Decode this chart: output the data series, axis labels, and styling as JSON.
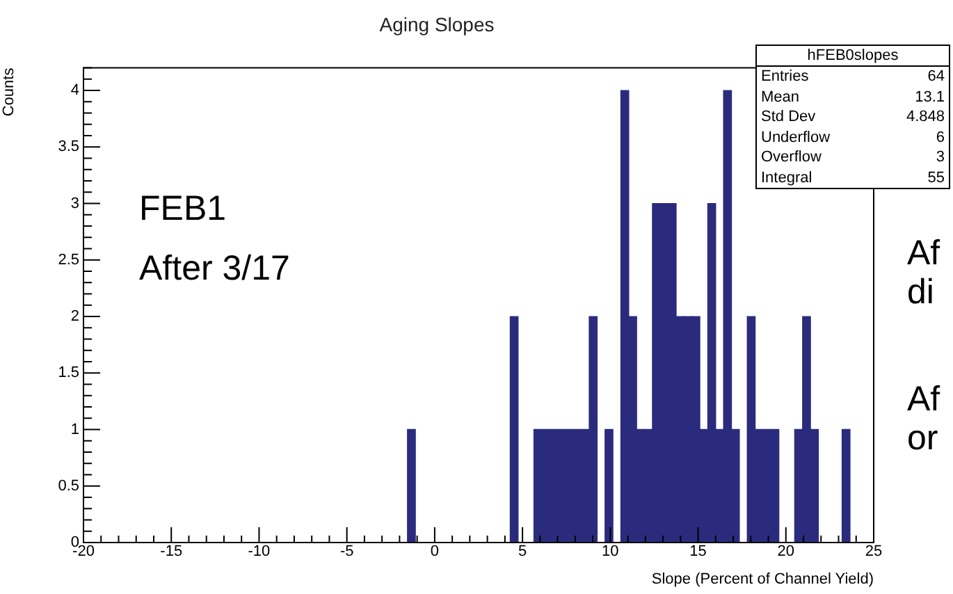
{
  "chart_data": {
    "type": "histogram",
    "title": "Aging Slopes",
    "xlabel": "Slope (Percent of Channel Yield)",
    "ylabel": "Counts",
    "color": "#2b2b7d",
    "bins": [
      -20,
      -19.55,
      -19.1,
      -18.65,
      -18.2,
      -17.75,
      -17.3,
      -16.85,
      -16.4,
      -15.95,
      -15.5,
      -15.05,
      -14.6,
      -14.15,
      -13.7,
      -13.25,
      -12.8,
      -12.35,
      -11.9,
      -11.45,
      -11,
      -10.55,
      -10.1,
      -9.65,
      -9.2,
      -8.75,
      -8.3,
      -7.85,
      -7.4,
      -6.95,
      -6.5,
      -6.05,
      -5.6,
      -5.15,
      -4.7,
      -4.25,
      -3.8,
      -3.35,
      -2.9,
      -2.45,
      -2,
      -1.55,
      -1.1,
      -0.65,
      -0.2,
      0.25,
      0.7,
      1.15,
      1.6,
      2.05,
      2.5,
      2.95,
      3.4,
      3.85,
      4.3,
      4.75,
      5.2,
      5.65,
      6.1,
      6.55,
      7,
      7.45,
      7.9,
      8.35,
      8.8,
      9.25,
      9.7,
      10.15,
      10.6,
      11.05,
      11.5,
      11.95,
      12.4,
      12.85,
      13.3,
      13.75,
      14.2,
      14.65,
      15.1,
      15.55,
      16,
      16.45,
      16.9,
      17.35,
      17.8,
      18.25,
      18.7,
      19.15,
      19.6,
      20.05,
      20.5,
      20.95,
      21.4,
      21.85,
      22.3,
      22.75,
      23.2,
      23.65,
      24.1,
      24.55,
      25
    ],
    "values": [
      0,
      0,
      0,
      0,
      0,
      0,
      0,
      0,
      0,
      0,
      0,
      0,
      0,
      0,
      0,
      0,
      0,
      0,
      0,
      0,
      0,
      0,
      0,
      0,
      0,
      0,
      0,
      0,
      0,
      0,
      0,
      0,
      0,
      0,
      0,
      0,
      0,
      0,
      0,
      0,
      0,
      1,
      0,
      0,
      0,
      0,
      0,
      0,
      0,
      0,
      0,
      0,
      0,
      0,
      2,
      0,
      0,
      1,
      1,
      1,
      1,
      1,
      1,
      1,
      2,
      0,
      1,
      0,
      4,
      2,
      1,
      1,
      3,
      3,
      3,
      2,
      2,
      2,
      1,
      3,
      1,
      4,
      1,
      0,
      2,
      1,
      1,
      1,
      0,
      0,
      1,
      2,
      1,
      0,
      0,
      0,
      1,
      0,
      0,
      0
    ],
    "xlim": [
      -20,
      25
    ],
    "xticks": [
      -20,
      {
        "value": -19,
        "label": null
      },
      {
        "value": -18,
        "label": null
      },
      {
        "value": -17,
        "label": null
      },
      {
        "value": -16,
        "label": null
      },
      -15,
      {
        "value": -14,
        "label": null
      },
      {
        "value": -13,
        "label": null
      },
      {
        "value": -12,
        "label": null
      },
      {
        "value": -11,
        "label": null
      },
      -10,
      {
        "value": -9,
        "label": null
      },
      {
        "value": -8,
        "label": null
      },
      {
        "value": -7,
        "label": null
      },
      {
        "value": -6,
        "label": null
      },
      -5,
      {
        "value": -4,
        "label": null
      },
      {
        "value": -3,
        "label": null
      },
      {
        "value": -2,
        "label": null
      },
      {
        "value": -1,
        "label": null
      },
      0,
      {
        "value": 1,
        "label": null
      },
      {
        "value": 2,
        "label": null
      },
      {
        "value": 3,
        "label": null
      },
      {
        "value": 4,
        "label": null
      },
      5,
      {
        "value": 6,
        "label": null
      },
      {
        "value": 7,
        "label": null
      },
      {
        "value": 8,
        "label": null
      },
      {
        "value": 9,
        "label": null
      },
      10,
      {
        "value": 11,
        "label": null
      },
      {
        "value": 12,
        "label": null
      },
      {
        "value": 13,
        "label": null
      },
      {
        "value": 14,
        "label": null
      },
      15,
      {
        "value": 16,
        "label": null
      },
      {
        "value": 17,
        "label": null
      },
      {
        "value": 18,
        "label": null
      },
      {
        "value": 19,
        "label": null
      },
      20,
      {
        "value": 21,
        "label": null
      },
      {
        "value": 22,
        "label": null
      },
      {
        "value": 23,
        "label": null
      },
      {
        "value": 24,
        "label": null
      },
      25
    ],
    "ylim": [
      0,
      4.2
    ],
    "yticks": [
      0,
      {
        "value": 0.1,
        "label": null
      },
      {
        "value": 0.2,
        "label": null
      },
      {
        "value": 0.3,
        "label": null
      },
      {
        "value": 0.4,
        "label": null
      },
      0.5,
      {
        "value": 0.6,
        "label": null
      },
      {
        "value": 0.7,
        "label": null
      },
      {
        "value": 0.8,
        "label": null
      },
      {
        "value": 0.9,
        "label": null
      },
      1,
      {
        "value": 1.1,
        "label": null
      },
      {
        "value": 1.2,
        "label": null
      },
      {
        "value": 1.3,
        "label": null
      },
      {
        "value": 1.4,
        "label": null
      },
      1.5,
      {
        "value": 1.6,
        "label": null
      },
      {
        "value": 1.7,
        "label": null
      },
      {
        "value": 1.8,
        "label": null
      },
      {
        "value": 1.9,
        "label": null
      },
      2,
      {
        "value": 2.1,
        "label": null
      },
      {
        "value": 2.2,
        "label": null
      },
      {
        "value": 2.3,
        "label": null
      },
      {
        "value": 2.4,
        "label": null
      },
      2.5,
      {
        "value": 2.6,
        "label": null
      },
      {
        "value": 2.7,
        "label": null
      },
      {
        "value": 2.8,
        "label": null
      },
      {
        "value": 2.9,
        "label": null
      },
      3,
      {
        "value": 3.1,
        "label": null
      },
      {
        "value": 3.2,
        "label": null
      },
      {
        "value": 3.3,
        "label": null
      },
      {
        "value": 3.4,
        "label": null
      },
      3.5,
      {
        "value": 3.6,
        "label": null
      },
      {
        "value": 3.7,
        "label": null
      },
      {
        "value": 3.8,
        "label": null
      },
      {
        "value": 3.9,
        "label": null
      },
      4,
      {
        "value": 4.1,
        "label": null
      },
      {
        "value": 4.2,
        "label": null
      }
    ],
    "grid": false,
    "legend": false,
    "annotations": [
      "FEB1",
      "After 3/17",
      "hFEB0slopes",
      "Entries",
      "64",
      "Mean",
      "13.1",
      "Std Dev",
      "4.848",
      "Underflow",
      "6",
      "Overflow",
      "3",
      "Integral",
      "55",
      "Af",
      "di",
      "Af",
      "or"
    ]
  }
}
